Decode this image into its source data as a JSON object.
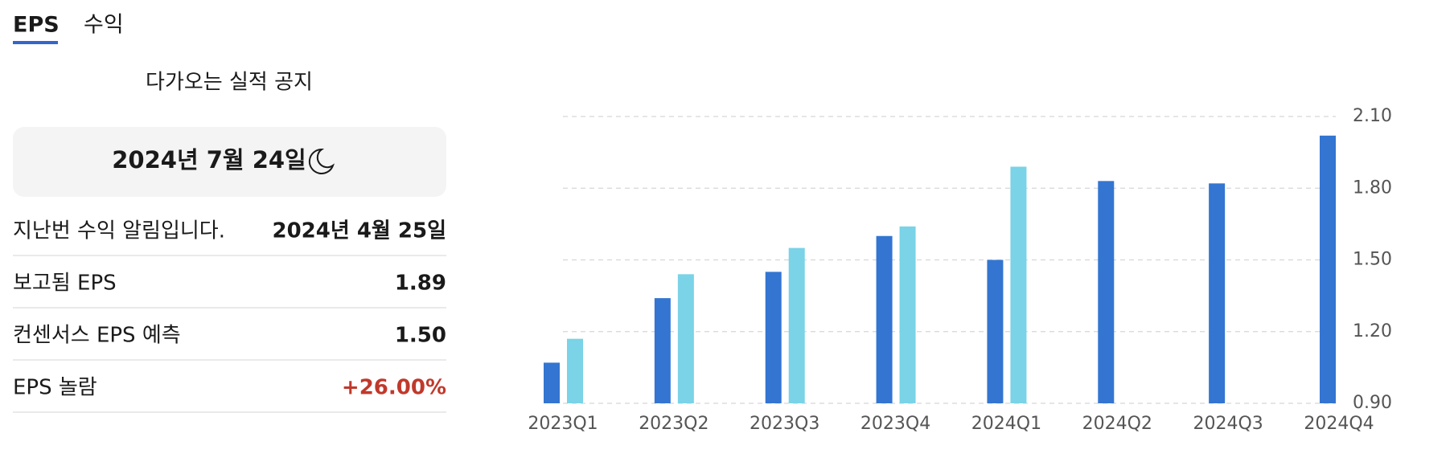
{
  "tabs": [
    "EPS",
    "수익"
  ],
  "panel": {
    "upcoming_title": "다가오는 실적 공지",
    "upcoming_date": "2024년 7월 24일",
    "rows": [
      [
        "지난번 수익 알림입니다.",
        "2024년 4월 25일"
      ],
      [
        "보고됨 EPS",
        "1.89"
      ],
      [
        "컨센서스 EPS 예측",
        "1.50"
      ],
      [
        "EPS 놀람",
        "+26.00%"
      ]
    ]
  },
  "chart_data": {
    "type": "bar",
    "categories": [
      "2023Q1",
      "2023Q2",
      "2023Q3",
      "2023Q4",
      "2024Q1",
      "2024Q2",
      "2024Q3",
      "2024Q4"
    ],
    "series": [
      {
        "color": "#3375d1",
        "values": [
          1.07,
          1.34,
          1.45,
          1.6,
          1.5,
          1.83,
          1.82,
          2.02
        ]
      },
      {
        "color": "#7ad3e6",
        "values": [
          1.17,
          1.44,
          1.55,
          1.64,
          1.89,
          null,
          null,
          null
        ]
      }
    ],
    "ylim": [
      0.9,
      2.1
    ],
    "yticks": [
      {
        "value": 0.9,
        "label": "0.90"
      },
      {
        "value": 1.2,
        "label": "1.20"
      },
      {
        "value": 1.5,
        "label": "1.50"
      },
      {
        "value": 1.8,
        "label": "1.80"
      },
      {
        "value": 2.1,
        "label": "2.10"
      }
    ],
    "grid": true
  }
}
